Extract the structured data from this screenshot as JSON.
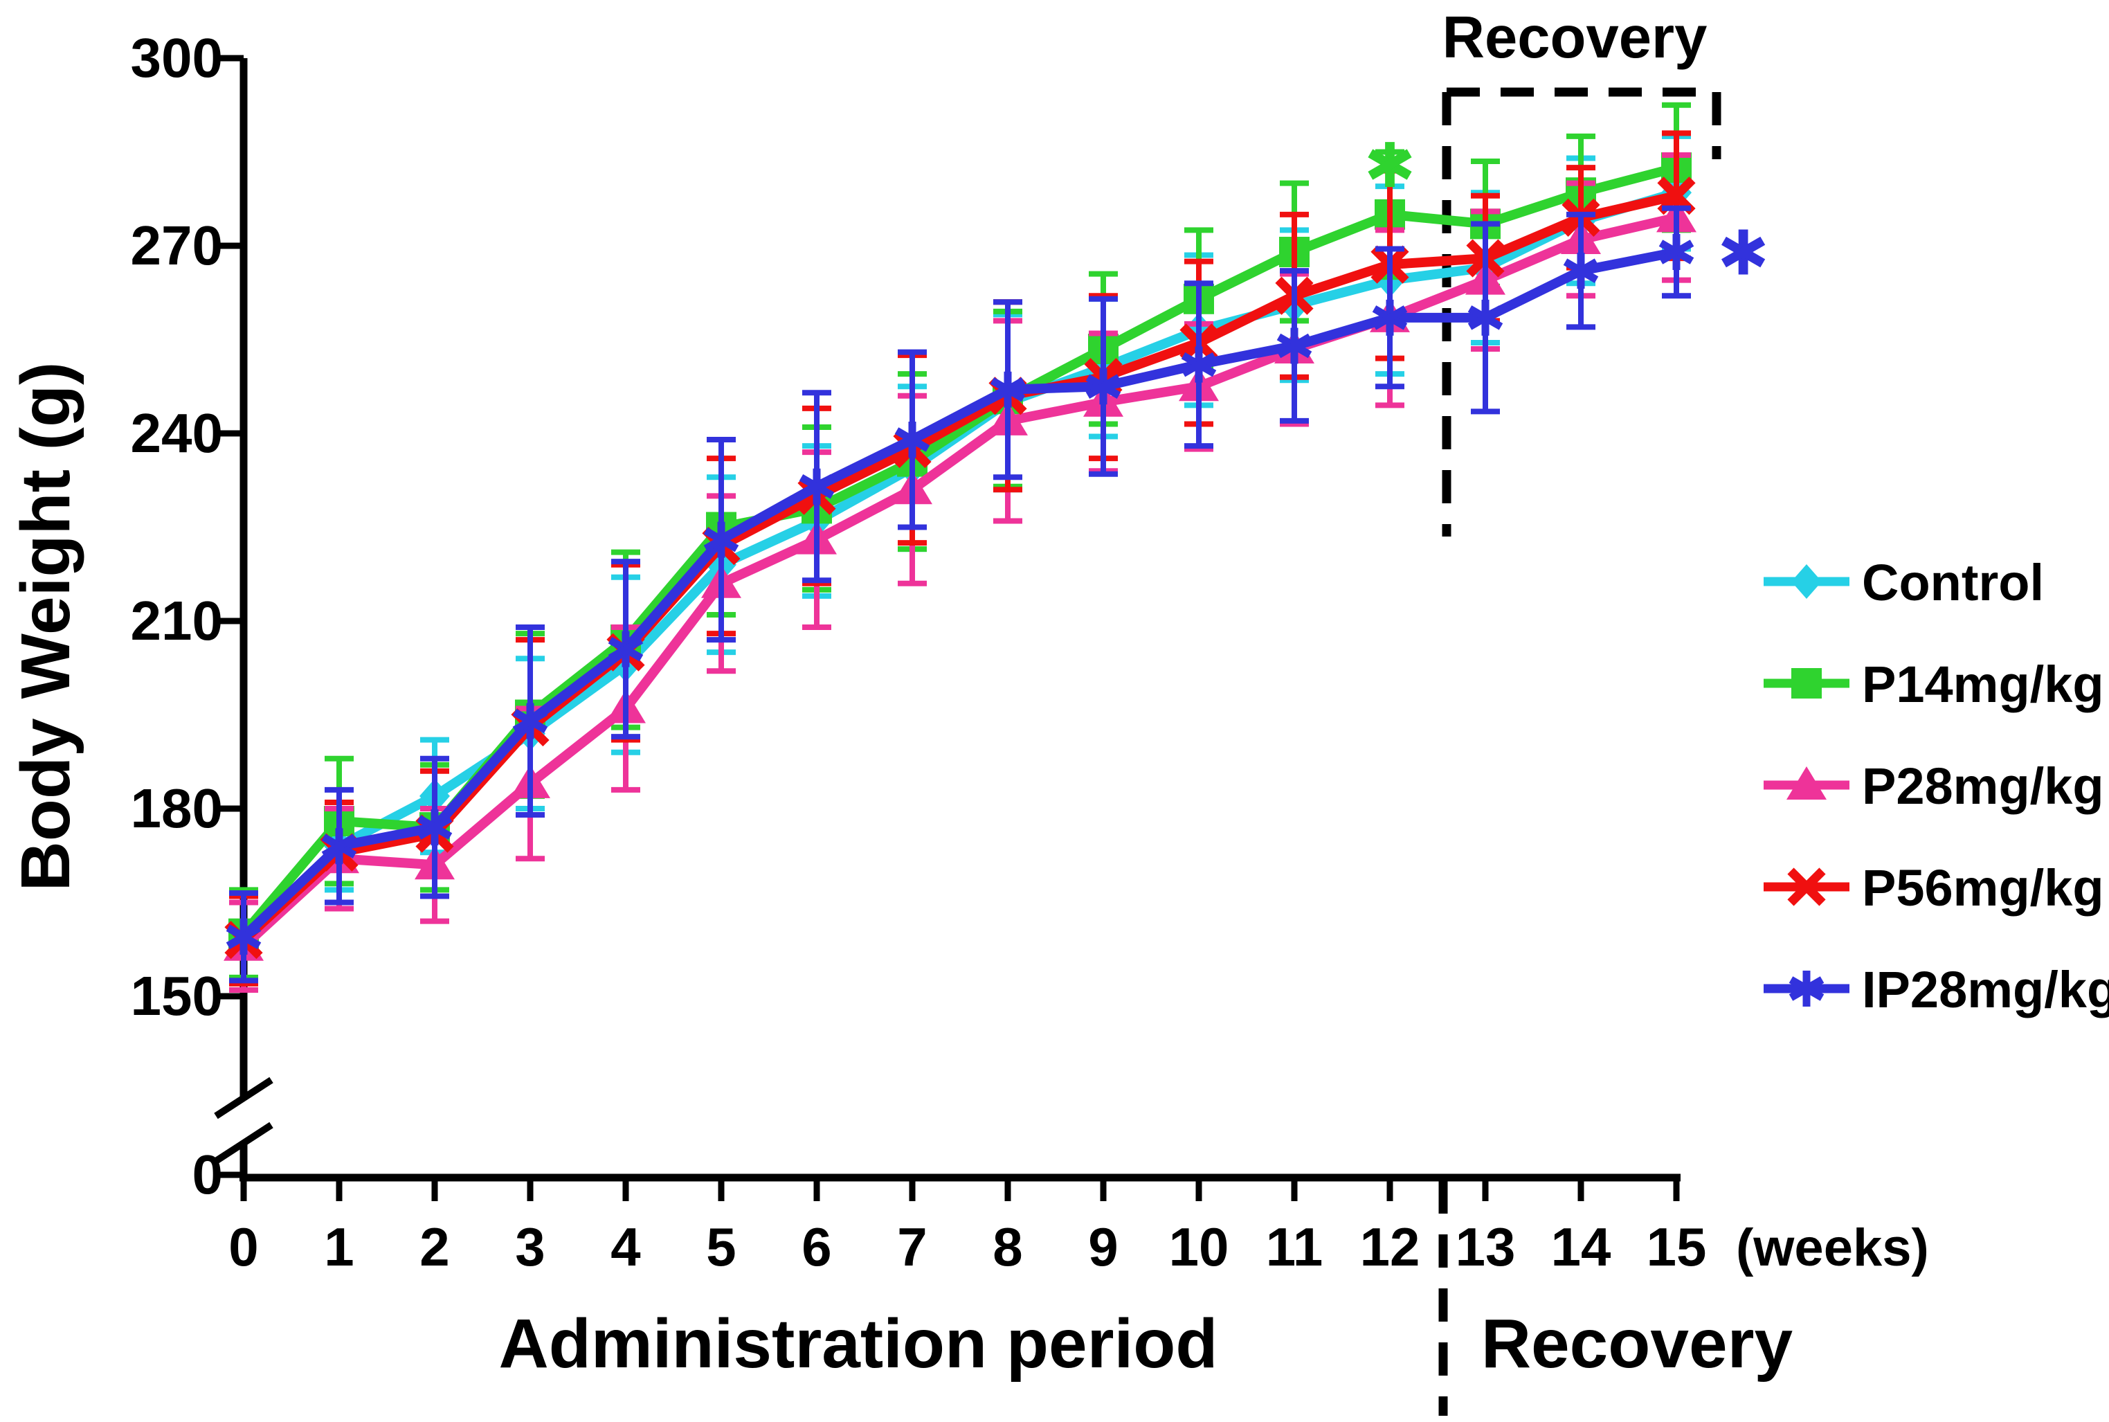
{
  "figure": {
    "ylabel": "Body Weight  (g)",
    "x_unit_label": "(weeks)",
    "administration_label": "Administration period",
    "recovery_bottom_label": "Recovery",
    "recovery_box_label": "Recovery",
    "significance": [
      {
        "symbol": "*",
        "color": "#2FD32F",
        "meaning": "P14mg/kg significant",
        "x_week": 12,
        "y_value": 283
      },
      {
        "symbol": "*",
        "color": "#3232DC",
        "meaning": "IP28mg/kg significant",
        "x_week": 15.7,
        "y_value": 269
      }
    ]
  },
  "chart_data": {
    "type": "line",
    "title": "",
    "xlabel": "(weeks)",
    "ylabel": "Body Weight  (g)",
    "x": [
      0,
      1,
      2,
      3,
      4,
      5,
      6,
      7,
      8,
      9,
      10,
      11,
      12,
      13,
      14,
      15
    ],
    "x_tick_labels": [
      "0",
      "1",
      "2",
      "3",
      "4",
      "5",
      "6",
      "7",
      "8",
      "9",
      "10",
      "11",
      "12",
      "13",
      "14",
      "15"
    ],
    "y_ticks": [
      300,
      270,
      240,
      210,
      180,
      150
    ],
    "y_zero_label": "0",
    "ylim_displayed": [
      150,
      300
    ],
    "axis_break": true,
    "grid": false,
    "legend_position": "right",
    "administration_weeks": [
      0,
      12
    ],
    "recovery_weeks": [
      13,
      15
    ],
    "series": [
      {
        "name": "Control",
        "marker": "diamond",
        "color": "#26D0E6",
        "values": [
          159.5,
          174,
          182,
          192,
          203,
          219,
          226,
          234.5,
          245,
          250.5,
          256.5,
          260.5,
          264.5,
          266.5,
          274,
          278.5
        ],
        "errors": [
          7,
          7,
          9,
          12,
          14,
          14,
          12,
          13,
          14,
          11,
          12,
          12,
          15,
          12,
          10,
          9
        ]
      },
      {
        "name": "P14mg/kg",
        "marker": "square",
        "color": "#2FD32F",
        "values": [
          160,
          178,
          177,
          195,
          207,
          225,
          228,
          235.5,
          245.5,
          253.5,
          261.5,
          269,
          275,
          273.5,
          278.5,
          282.5
        ],
        "errors": [
          7,
          10,
          10,
          13,
          14,
          14,
          13,
          14,
          14,
          12,
          11,
          11,
          10,
          10,
          9,
          10
        ]
      },
      {
        "name": "P28mg/kg",
        "marker": "triangle",
        "color": "#EE3399",
        "values": [
          158,
          172,
          171,
          184,
          196,
          216,
          223,
          231,
          242,
          245,
          247.5,
          253.5,
          258.5,
          264.5,
          271,
          274.5
        ],
        "errors": [
          7,
          8,
          9,
          12,
          13,
          14,
          14,
          15,
          16,
          11,
          10,
          12,
          14,
          11,
          9,
          10
        ]
      },
      {
        "name": "P56mg/kg",
        "marker": "x",
        "color": "#F01010",
        "values": [
          159,
          173,
          176,
          193,
          205,
          222,
          230,
          237.5,
          246,
          249,
          254.5,
          262,
          267,
          268,
          274.5,
          278
        ],
        "errors": [
          7,
          8,
          10,
          14,
          14,
          14,
          14,
          15,
          15,
          13,
          13,
          13,
          15,
          10,
          8,
          10
        ]
      },
      {
        "name": "IP28mg/kg",
        "marker": "asterisk",
        "color": "#3232DC",
        "values": [
          159.5,
          174,
          177,
          194,
          205.5,
          223,
          231.5,
          239,
          247,
          247.5,
          251,
          254,
          258.5,
          258.5,
          266,
          269
        ],
        "errors": [
          7,
          9,
          11,
          15,
          14,
          16,
          15,
          14,
          14,
          14,
          13,
          12,
          11,
          15,
          9,
          7
        ]
      }
    ]
  }
}
